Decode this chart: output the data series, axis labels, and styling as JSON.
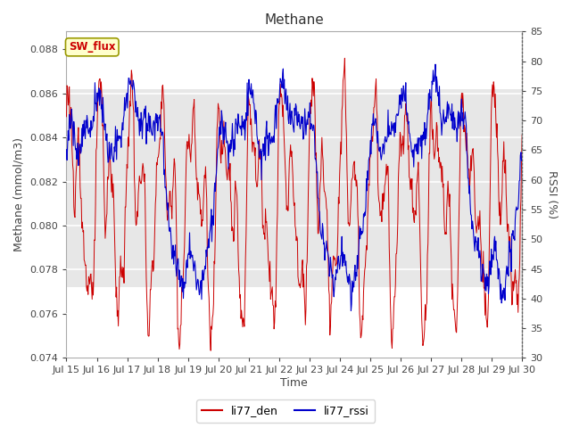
{
  "title": "Methane",
  "ylabel_left": "Methane (mmol/m3)",
  "ylabel_right": "RSSI (%)",
  "xlabel": "Time",
  "ylim_left": [
    0.074,
    0.0888
  ],
  "ylim_right": [
    30,
    85
  ],
  "yticks_left": [
    0.074,
    0.076,
    0.078,
    0.08,
    0.082,
    0.084,
    0.086,
    0.088
  ],
  "yticks_right": [
    30,
    35,
    40,
    45,
    50,
    55,
    60,
    65,
    70,
    75,
    80,
    85
  ],
  "xtick_labels": [
    "Jul 15",
    "Jul 16",
    "Jul 17",
    "Jul 18",
    "Jul 19",
    "Jul 20",
    "Jul 21",
    "Jul 22",
    "Jul 23",
    "Jul 24",
    "Jul 25",
    "Jul 26",
    "Jul 27",
    "Jul 28",
    "Jul 29",
    "Jul 30"
  ],
  "legend_labels": [
    "li77_den",
    "li77_rssi"
  ],
  "line_color_den": "#cc0000",
  "line_color_rssi": "#0000cc",
  "sw_flux_label": "SW_flux",
  "sw_flux_bg": "#ffffcc",
  "sw_flux_border": "#999900",
  "sw_flux_text_color": "#cc0000",
  "background_color": "#ffffff",
  "plot_bg_color": "#ffffff",
  "grid_color": "#cccccc",
  "gray_band_color": "#dddddd",
  "gray_band_lo": 0.0772,
  "gray_band_hi": 0.0862,
  "title_fontsize": 11,
  "axis_label_fontsize": 9,
  "tick_fontsize": 8,
  "legend_fontsize": 9
}
